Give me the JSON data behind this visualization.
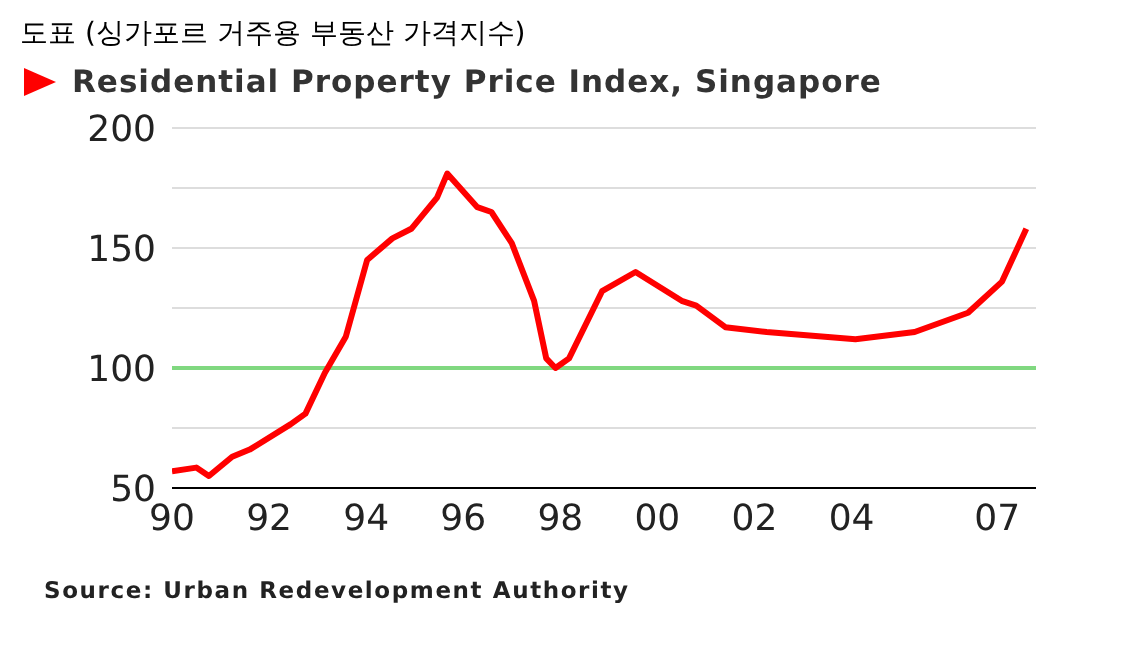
{
  "chart_data": {
    "type": "line",
    "title": "도표 (싱가포르 거주용 부동산 가격지수)",
    "legend": "top left",
    "marker": "none",
    "line_style": "solid",
    "grid": "y",
    "series": [
      {
        "name": "Residential Property Price Index, Singapore",
        "color": "#ff0000",
        "x": [
          1990.0,
          1990.5,
          1990.76,
          1991.24,
          1991.6,
          1992.44,
          1992.75,
          1993.15,
          1993.58,
          1994.02,
          1994.54,
          1994.93,
          1995.46,
          1995.67,
          1996.29,
          1996.58,
          1997.0,
          1997.46,
          1997.71,
          1997.9,
          1998.18,
          1998.86,
          1999.55,
          2000.5,
          2000.8,
          2001.4,
          2002.25,
          2004.08,
          2005.3,
          2006.4,
          2007.1,
          2007.6
        ],
        "values": [
          57,
          58.5,
          55,
          63,
          66,
          76.5,
          81,
          98,
          113,
          145,
          154,
          158,
          171,
          181,
          167,
          165,
          152,
          128,
          104,
          100,
          104,
          132,
          140,
          128,
          126,
          117,
          115,
          112,
          115,
          123,
          136,
          158
        ]
      }
    ],
    "xlim": [
      1990,
      2007.8
    ],
    "xticks": [
      {
        "value": 1990,
        "label": "90"
      },
      {
        "value": 1992,
        "label": "92"
      },
      {
        "value": 1994,
        "label": "94"
      },
      {
        "value": 1996,
        "label": "96"
      },
      {
        "value": 1998,
        "label": "98"
      },
      {
        "value": 2000,
        "label": "00"
      },
      {
        "value": 2002,
        "label": "02"
      },
      {
        "value": 2004,
        "label": "04"
      },
      {
        "value": 2007,
        "label": "07"
      }
    ],
    "ylim": [
      50,
      200
    ],
    "yticks": [
      50,
      {
        "value": 75,
        "label": null
      },
      100,
      {
        "value": 125,
        "label": null
      },
      150,
      {
        "value": 175,
        "label": null
      },
      200
    ],
    "ref_lines": [
      {
        "axis": "y",
        "value": 100,
        "color": "#80d880"
      }
    ],
    "annotations": [
      "Source: Urban Redevelopment Authority"
    ]
  }
}
